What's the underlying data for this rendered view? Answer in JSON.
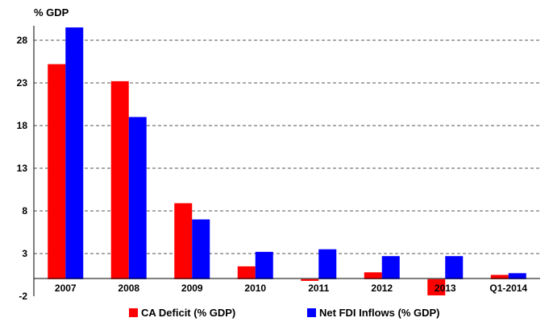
{
  "chart_data": {
    "type": "bar",
    "unit_label": "% GDP",
    "categories": [
      "2007",
      "2008",
      "2009",
      "2010",
      "2011",
      "2012",
      "2013",
      "Q1-2014"
    ],
    "series": [
      {
        "name": "CA Deficit (% GDP)",
        "color": "#ff0000",
        "values": [
          25.2,
          23.2,
          8.9,
          1.5,
          -0.2,
          0.8,
          -1.9,
          0.5
        ]
      },
      {
        "name": "Net FDI Inflows (% GDP)",
        "color": "#0000ff",
        "values": [
          29.5,
          19.0,
          7.0,
          3.2,
          3.5,
          2.7,
          2.7,
          0.7
        ]
      }
    ],
    "y_ticks": [
      "28",
      "23",
      "18",
      "13",
      "8",
      "3",
      "-2"
    ],
    "ylim": [
      -2,
      30
    ],
    "grid": true,
    "legend_position": "bottom"
  }
}
